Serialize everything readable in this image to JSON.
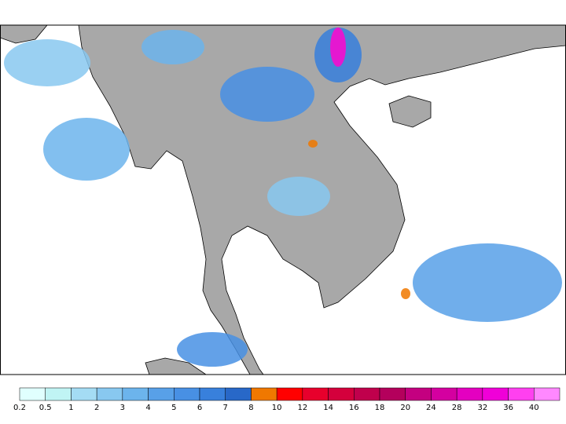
{
  "colorbar": {
    "labels": [
      0.2,
      0.5,
      1,
      2,
      3,
      4,
      5,
      6,
      7,
      8,
      10,
      12,
      14,
      16,
      18,
      20,
      24,
      28,
      32,
      36,
      40
    ],
    "colors": [
      "#e0fffe",
      "#c0f4f4",
      "#a4dcf4",
      "#88c8f0",
      "#6cb4ec",
      "#58a0e8",
      "#4890e4",
      "#3880dc",
      "#2868c8",
      "#f07800",
      "#ff0000",
      "#e8002c",
      "#d4003c",
      "#c0004c",
      "#b4005c",
      "#c40080",
      "#d400a0",
      "#e400c0",
      "#f000d8",
      "#ff40f0",
      "#ff88ff"
    ]
  }
}
